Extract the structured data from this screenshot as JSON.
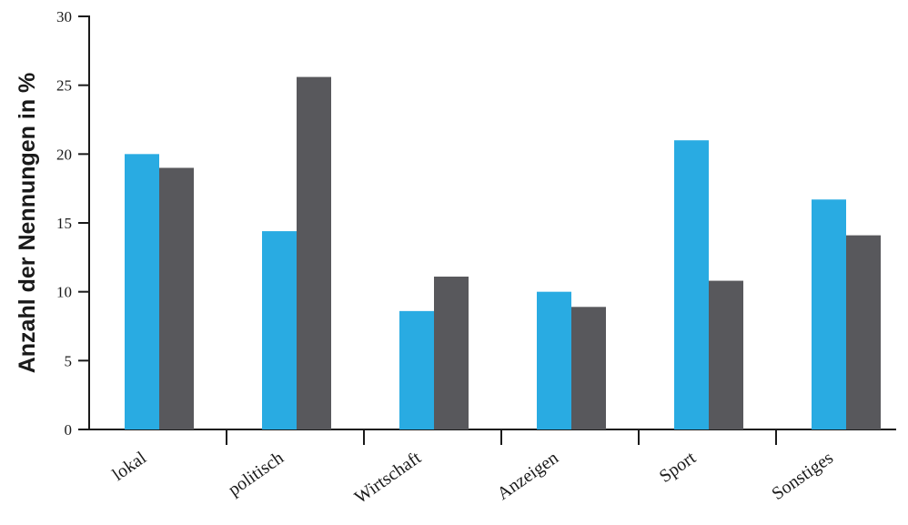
{
  "chart_data": {
    "type": "bar",
    "title": "",
    "xlabel": "",
    "ylabel": "Anzahl der Nennungen in %",
    "categories": [
      "lokal",
      "politisch",
      "Wirtschaft",
      "Anzeigen",
      "Sport",
      "Sonstiges"
    ],
    "series": [
      {
        "color": "#29abe2",
        "values": [
          20.0,
          14.4,
          8.6,
          10.0,
          21.0,
          16.7
        ]
      },
      {
        "color": "#58585c",
        "values": [
          19.0,
          25.6,
          11.1,
          8.9,
          10.8,
          14.1
        ]
      }
    ],
    "ylim": [
      0,
      30
    ],
    "yticks": [
      0,
      5,
      10,
      15,
      20,
      25,
      30
    ],
    "grid": false,
    "legend": "none"
  }
}
